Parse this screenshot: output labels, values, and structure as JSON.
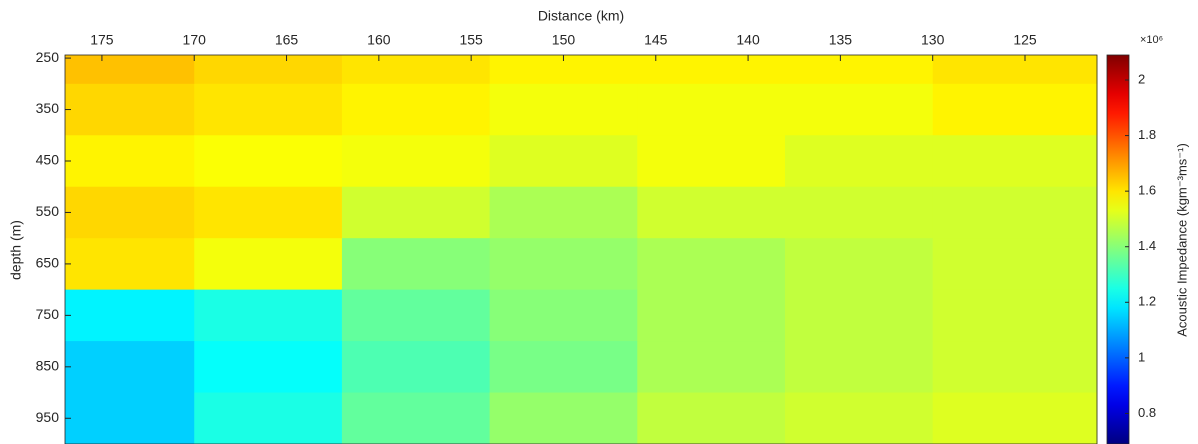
{
  "chart_data": {
    "type": "heatmap",
    "x_label": "Distance (km)",
    "y_label": "depth (m)",
    "colorbar_label": "Acoustic Impedance (kgm⁻³ms⁻¹)",
    "colorbar_multiplier": "×10⁶",
    "colormap": "jet",
    "x_edges": [
      177,
      170,
      162,
      154,
      146,
      138,
      130,
      121.1
    ],
    "y_edges": [
      244,
      300,
      400,
      500,
      600,
      700,
      800,
      900,
      1000
    ],
    "z": [
      [
        1.65,
        1.62,
        1.6,
        1.58,
        1.58,
        1.58,
        1.6
      ],
      [
        1.62,
        1.6,
        1.58,
        1.55,
        1.55,
        1.55,
        1.58
      ],
      [
        1.58,
        1.56,
        1.55,
        1.52,
        1.55,
        1.52,
        1.52
      ],
      [
        1.62,
        1.6,
        1.5,
        1.45,
        1.5,
        1.5,
        1.5
      ],
      [
        1.6,
        1.55,
        1.4,
        1.42,
        1.45,
        1.48,
        1.5
      ],
      [
        1.2,
        1.25,
        1.35,
        1.4,
        1.45,
        1.48,
        1.5
      ],
      [
        1.15,
        1.22,
        1.32,
        1.38,
        1.45,
        1.48,
        1.5
      ],
      [
        1.15,
        1.25,
        1.35,
        1.42,
        1.48,
        1.5,
        1.52
      ]
    ],
    "xlim": [
      177,
      121.1
    ],
    "xticks": [
      175,
      170,
      165,
      160,
      155,
      150,
      145,
      140,
      135,
      130,
      125
    ],
    "ylim": [
      244,
      1000
    ],
    "yticks": [
      250,
      350,
      450,
      550,
      650,
      750,
      850,
      950
    ],
    "clim": [
      0.69,
      2.09
    ],
    "cticks": [
      0.8,
      1,
      1.2,
      1.4,
      1.6,
      1.8,
      2
    ]
  }
}
